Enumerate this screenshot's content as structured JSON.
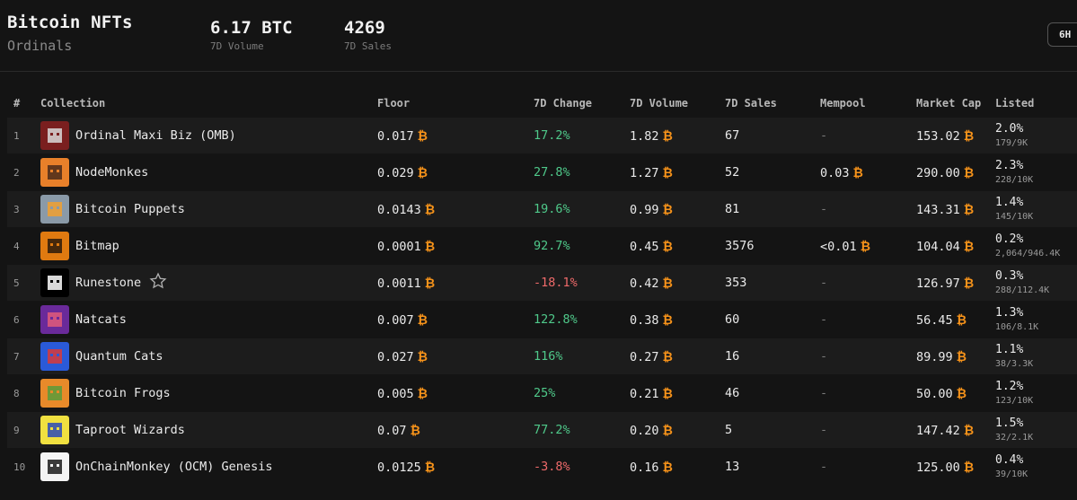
{
  "header": {
    "title": "Bitcoin NFTs",
    "subtitle": "Ordinals",
    "stats": [
      {
        "value": "6.17 BTC",
        "label": "7D Volume"
      },
      {
        "value": "4269",
        "label": "7D Sales"
      }
    ],
    "time_button": "6H"
  },
  "table": {
    "columns": [
      "#",
      "Collection",
      "Floor",
      "7D Change",
      "7D Volume",
      "7D Sales",
      "Mempool",
      "Market Cap",
      "Listed"
    ],
    "currency_symbol": "₿",
    "rows": [
      {
        "rank": "1",
        "name": "Ordinal Maxi Biz (OMB)",
        "floor": "0.017",
        "change": "17.2%",
        "change_dir": "up",
        "volume": "1.82",
        "sales": "67",
        "mempool": "-",
        "market_cap": "153.02",
        "listed_pct": "2.0%",
        "listed_count": "179/9K",
        "avatar_colors": [
          "#7a1f1f",
          "#d9d9d9"
        ]
      },
      {
        "rank": "2",
        "name": "NodeMonkes",
        "floor": "0.029",
        "change": "27.8%",
        "change_dir": "up",
        "volume": "1.27",
        "sales": "52",
        "mempool": "0.03",
        "market_cap": "290.00",
        "listed_pct": "2.3%",
        "listed_count": "228/10K",
        "avatar_colors": [
          "#e8802a",
          "#4a2a1a"
        ]
      },
      {
        "rank": "3",
        "name": "Bitcoin Puppets",
        "floor": "0.0143",
        "change": "19.6%",
        "change_dir": "up",
        "volume": "0.99",
        "sales": "81",
        "mempool": "-",
        "market_cap": "143.31",
        "listed_pct": "1.4%",
        "listed_count": "145/10K",
        "avatar_colors": [
          "#8a9aa8",
          "#f0a030"
        ]
      },
      {
        "rank": "4",
        "name": "Bitmap",
        "floor": "0.0001",
        "change": "92.7%",
        "change_dir": "up",
        "volume": "0.45",
        "sales": "3576",
        "mempool": "<0.01",
        "market_cap": "104.04",
        "listed_pct": "0.2%",
        "listed_count": "2,064/946.4K",
        "avatar_colors": [
          "#e07a10",
          "#2a1a0a"
        ]
      },
      {
        "rank": "5",
        "name": "Runestone",
        "floor": "0.0011",
        "change": "-18.1%",
        "change_dir": "down",
        "volume": "0.42",
        "sales": "353",
        "mempool": "-",
        "market_cap": "126.97",
        "listed_pct": "0.3%",
        "listed_count": "288/112.4K",
        "avatar_colors": [
          "#000000",
          "#ffffff"
        ],
        "starred": true
      },
      {
        "rank": "6",
        "name": "Natcats",
        "floor": "0.007",
        "change": "122.8%",
        "change_dir": "up",
        "volume": "0.38",
        "sales": "60",
        "mempool": "-",
        "market_cap": "56.45",
        "listed_pct": "1.3%",
        "listed_count": "106/8.1K",
        "avatar_colors": [
          "#6a2a9a",
          "#e05a7a"
        ]
      },
      {
        "rank": "7",
        "name": "Quantum Cats",
        "floor": "0.027",
        "change": "116%",
        "change_dir": "up",
        "volume": "0.27",
        "sales": "16",
        "mempool": "-",
        "market_cap": "89.99",
        "listed_pct": "1.1%",
        "listed_count": "38/3.3K",
        "avatar_colors": [
          "#2a5ad8",
          "#d83a3a"
        ]
      },
      {
        "rank": "8",
        "name": "Bitcoin Frogs",
        "floor": "0.005",
        "change": "25%",
        "change_dir": "up",
        "volume": "0.21",
        "sales": "46",
        "mempool": "-",
        "market_cap": "50.00",
        "listed_pct": "1.2%",
        "listed_count": "123/10K",
        "avatar_colors": [
          "#e88a2a",
          "#5a9a3a"
        ]
      },
      {
        "rank": "9",
        "name": "Taproot Wizards",
        "floor": "0.07",
        "change": "77.2%",
        "change_dir": "up",
        "volume": "0.20",
        "sales": "5",
        "mempool": "-",
        "market_cap": "147.42",
        "listed_pct": "1.5%",
        "listed_count": "32/2.1K",
        "avatar_colors": [
          "#f0e040",
          "#2a4ab8"
        ]
      },
      {
        "rank": "10",
        "name": "OnChainMonkey (OCM) Genesis",
        "floor": "0.0125",
        "change": "-3.8%",
        "change_dir": "down",
        "volume": "0.16",
        "sales": "13",
        "mempool": "-",
        "market_cap": "125.00",
        "listed_pct": "0.4%",
        "listed_count": "39/10K",
        "avatar_colors": [
          "#f4f4f4",
          "#1a1a1a"
        ]
      }
    ]
  },
  "colors": {
    "background": "#141414",
    "row_alt": "#1c1c1c",
    "positive": "#4fc98a",
    "negative": "#ef6a6a",
    "btc_accent": "#f7931a"
  }
}
